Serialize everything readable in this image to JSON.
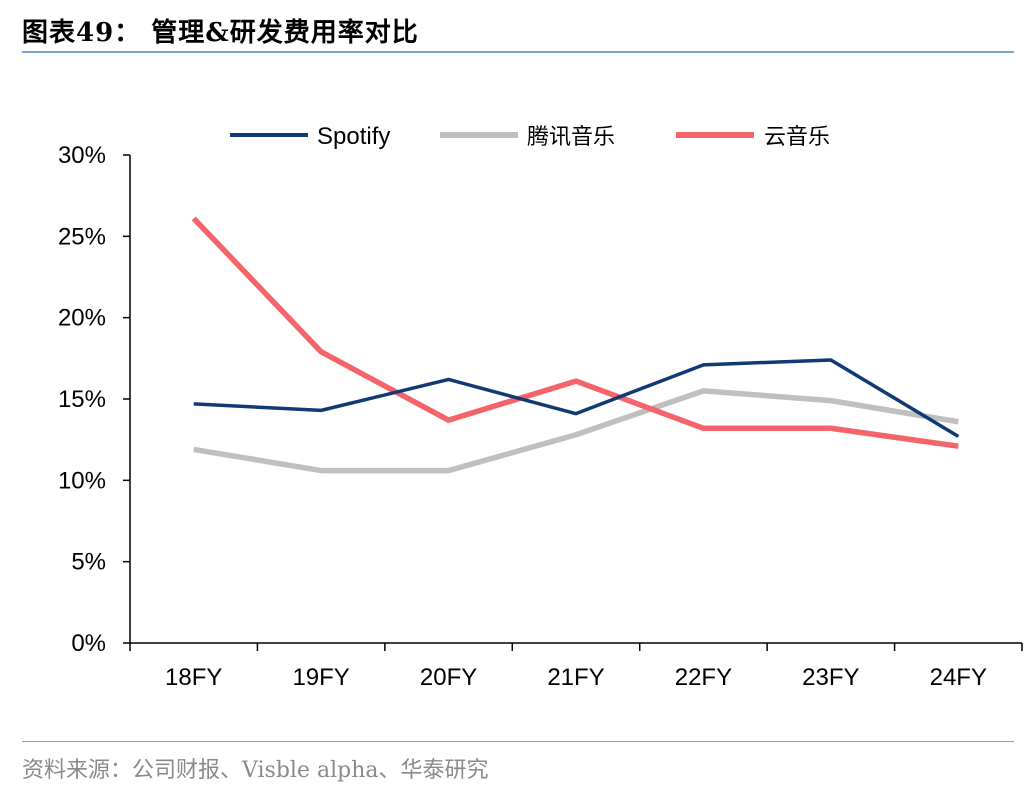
{
  "header": {
    "title": "图表49： 管理&研发费用率对比"
  },
  "footer": {
    "source": "资料来源：公司财报、Visble alpha、华泰研究"
  },
  "chart_data": {
    "type": "line",
    "categories": [
      "18FY",
      "19FY",
      "20FY",
      "21FY",
      "22FY",
      "23FY",
      "24FY"
    ],
    "ylim": [
      0,
      30
    ],
    "yticks": [
      "0%",
      "5%",
      "10%",
      "15%",
      "20%",
      "25%",
      "30%"
    ],
    "ytick_values": [
      0,
      5,
      10,
      15,
      20,
      25,
      30
    ],
    "legend_position": "top-center",
    "grid": false,
    "series": [
      {
        "name": "Spotify",
        "color": "#0f3a73",
        "values": [
          14.7,
          14.3,
          16.2,
          14.1,
          17.1,
          17.4,
          12.7
        ]
      },
      {
        "name": "腾讯音乐",
        "color": "#bfbfbf",
        "values": [
          11.9,
          10.6,
          10.6,
          12.8,
          15.5,
          14.9,
          13.6
        ]
      },
      {
        "name": "云音乐",
        "color": "#f4646a",
        "values": [
          26.1,
          17.9,
          13.7,
          16.1,
          13.2,
          13.2,
          12.1
        ]
      }
    ]
  }
}
